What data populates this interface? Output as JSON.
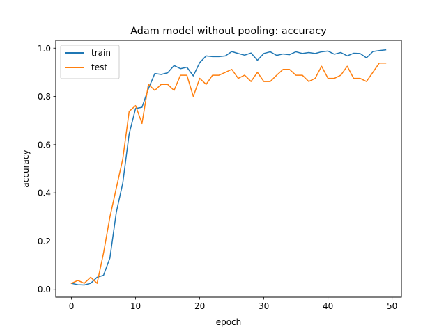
{
  "chart_data": {
    "type": "line",
    "title": "Adam model without pooling: accuracy",
    "xlabel": "epoch",
    "ylabel": "accuracy",
    "xlim": [
      -2.45,
      51.45
    ],
    "ylim": [
      -0.0325,
      1.0325
    ],
    "xticks": [
      0,
      10,
      20,
      30,
      40,
      50
    ],
    "yticks": [
      0.0,
      0.2,
      0.4,
      0.6,
      0.8,
      1.0
    ],
    "xtick_labels": [
      "0",
      "10",
      "20",
      "30",
      "40",
      "50"
    ],
    "ytick_labels": [
      "0.0",
      "0.2",
      "0.4",
      "0.6",
      "0.8",
      "1.0"
    ],
    "grid": false,
    "legend_position": "top-left",
    "x": [
      0,
      1,
      2,
      3,
      4,
      5,
      6,
      7,
      8,
      9,
      10,
      11,
      12,
      13,
      14,
      15,
      16,
      17,
      18,
      19,
      20,
      21,
      22,
      23,
      24,
      25,
      26,
      27,
      28,
      29,
      30,
      31,
      32,
      33,
      34,
      35,
      36,
      37,
      38,
      39,
      40,
      41,
      42,
      43,
      44,
      45,
      46,
      47,
      48,
      49
    ],
    "series": [
      {
        "name": "train",
        "color": "#1f77b4",
        "values": [
          0.025,
          0.019,
          0.018,
          0.025,
          0.05,
          0.058,
          0.13,
          0.32,
          0.44,
          0.645,
          0.75,
          0.755,
          0.832,
          0.895,
          0.891,
          0.898,
          0.928,
          0.915,
          0.921,
          0.885,
          0.94,
          0.968,
          0.965,
          0.965,
          0.968,
          0.986,
          0.978,
          0.971,
          0.98,
          0.95,
          0.978,
          0.985,
          0.97,
          0.976,
          0.973,
          0.985,
          0.978,
          0.982,
          0.978,
          0.985,
          0.988,
          0.975,
          0.982,
          0.968,
          0.979,
          0.978,
          0.96,
          0.986,
          0.99,
          0.993
        ]
      },
      {
        "name": "test",
        "color": "#ff7f0e",
        "values": [
          0.025,
          0.037,
          0.025,
          0.05,
          0.025,
          0.15,
          0.3,
          0.42,
          0.54,
          0.738,
          0.762,
          0.688,
          0.85,
          0.825,
          0.85,
          0.85,
          0.825,
          0.888,
          0.888,
          0.8,
          0.875,
          0.85,
          0.888,
          0.888,
          0.9,
          0.912,
          0.875,
          0.888,
          0.862,
          0.9,
          0.862,
          0.862,
          0.888,
          0.912,
          0.912,
          0.888,
          0.888,
          0.862,
          0.875,
          0.925,
          0.875,
          0.875,
          0.888,
          0.925,
          0.875,
          0.875,
          0.862,
          0.9,
          0.938,
          0.938
        ]
      }
    ]
  }
}
